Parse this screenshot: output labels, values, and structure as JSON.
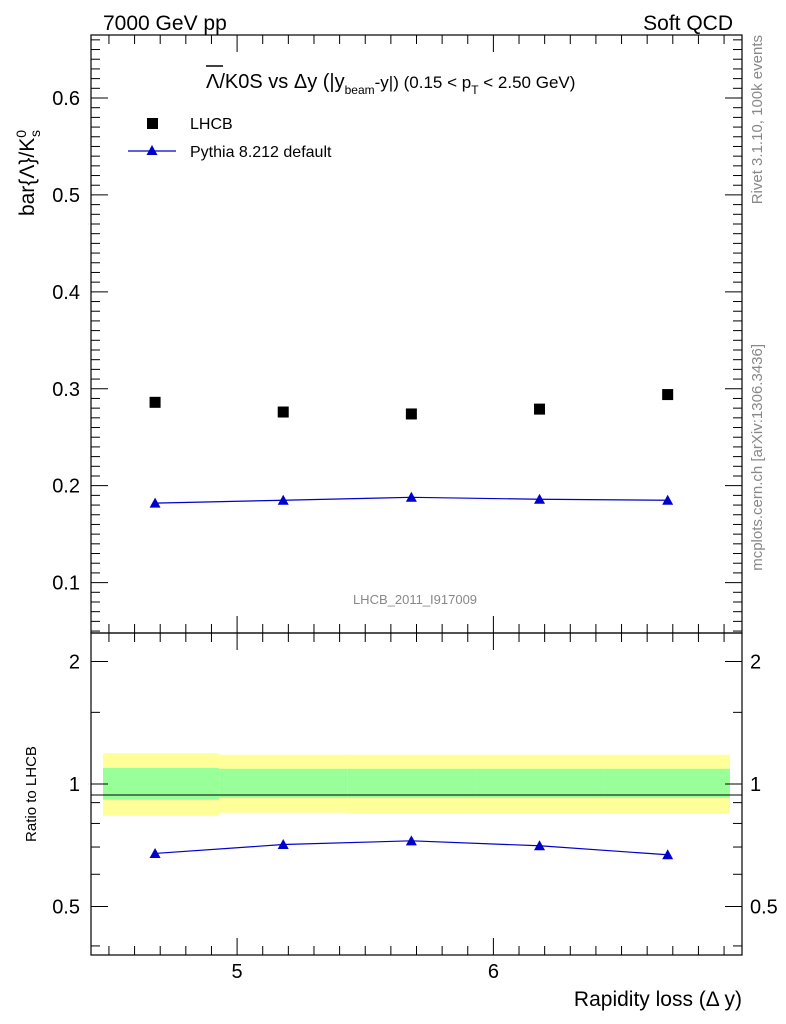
{
  "header": {
    "left": "7000 GeV pp",
    "right": "Soft QCD"
  },
  "side": {
    "top": "Rivet 3.1.10,  100k events",
    "bottom": "mcplots.cern.ch [arXiv:1306.3436]"
  },
  "chart_data": [
    {
      "type": "scatter",
      "title": "Λ̄/K0S vs Δy (|y_beam-y|) (0.15 < p_T < 2.50 GeV)",
      "title_parts": {
        "a": "Λ",
        "b": "/K0S vs Δy (|y",
        "c": "beam",
        "d": "-y|) (0.15 < p",
        "e": "T",
        "f": " < 2.50 GeV)"
      },
      "ylabel": "bar{Λ}/K",
      "ylabel_sup": "0",
      "ylabel_sub": "s",
      "watermark": "LHCB_2011_I917009",
      "xlim": [
        4.43,
        6.97
      ],
      "ylim": [
        0.048,
        0.665
      ],
      "yticks": [
        "0.1",
        "0.2",
        "0.3",
        "0.4",
        "0.5",
        "0.6"
      ],
      "legend_position": "top-left",
      "grid": false,
      "x": [
        4.68,
        5.18,
        5.68,
        6.18,
        6.68
      ],
      "series": [
        {
          "name": "LHCB",
          "style": "markers",
          "marker": "square",
          "color": "#000000",
          "values": [
            0.286,
            0.276,
            0.274,
            0.279,
            0.294
          ]
        },
        {
          "name": "Pythia 8.212 default",
          "style": "line-markers",
          "marker": "triangle",
          "color": "#0000cc",
          "values": [
            0.182,
            0.185,
            0.188,
            0.186,
            0.185
          ]
        }
      ]
    },
    {
      "type": "line",
      "ylabel": "Ratio to LHCB",
      "xlabel": "Rapidity loss (Δ y)",
      "xlim": [
        4.43,
        6.97
      ],
      "ylim": [
        0.38,
        2.35
      ],
      "yscale": "log",
      "yticks_left": [
        "0.5",
        "1",
        "2"
      ],
      "yticks_right": [
        "0.5",
        "1",
        "2"
      ],
      "xticks": [
        "5",
        "6"
      ],
      "x": [
        4.68,
        5.18,
        5.68,
        6.18,
        6.68
      ],
      "reference": 1.0,
      "bands": {
        "edges": [
          4.43,
          4.93,
          5.43,
          5.93,
          6.43,
          6.93
        ],
        "outer_color": "#ffff99",
        "inner_color": "#99ff99",
        "outer_lo": [
          0.835,
          0.85,
          0.845,
          0.845,
          0.845
        ],
        "outer_hi": [
          1.19,
          1.18,
          1.18,
          1.18,
          1.18
        ],
        "inner_lo": [
          0.915,
          0.925,
          0.925,
          0.925,
          0.925
        ],
        "inner_hi": [
          1.095,
          1.09,
          1.09,
          1.09,
          1.09
        ]
      },
      "series": [
        {
          "name": "Pythia 8.212 default",
          "color": "#0000cc",
          "marker": "triangle",
          "values": [
            0.675,
            0.71,
            0.725,
            0.705,
            0.67
          ]
        }
      ]
    }
  ]
}
